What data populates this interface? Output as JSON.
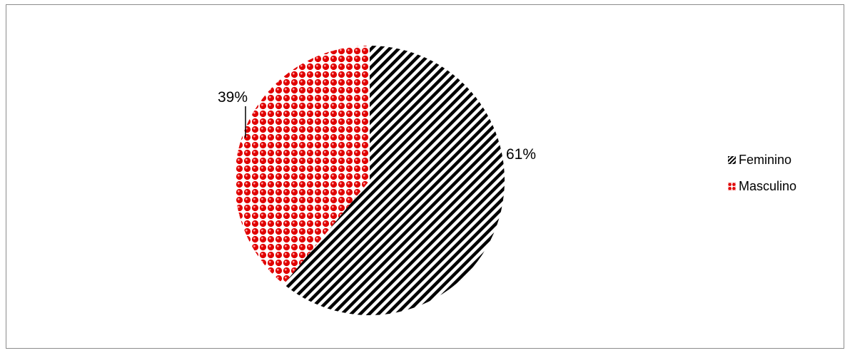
{
  "chart_data": {
    "type": "pie",
    "title": "",
    "slices": [
      {
        "label": "Feminino",
        "value": 61,
        "value_label": "61%",
        "color": "#000000",
        "pattern": "diagonal-stripes"
      },
      {
        "label": "Masculino",
        "value": 39,
        "value_label": "39%",
        "color": "#ff0000",
        "pattern": "dotted-grid"
      }
    ],
    "legend_position": "right"
  }
}
